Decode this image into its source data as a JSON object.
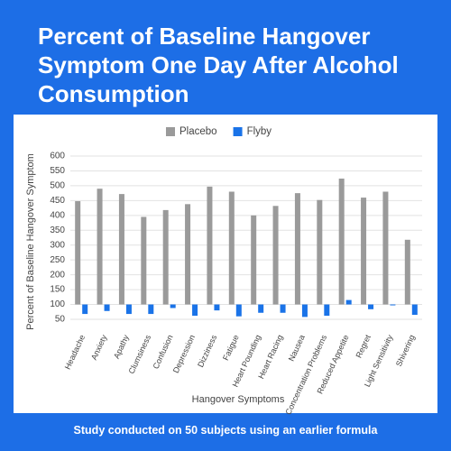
{
  "chart_data": {
    "type": "bar",
    "title": "Percent of Baseline Hangover Symptom One Day After Alcohol Consumption",
    "footnote": "Study conducted on 50 subjects using an earlier formula",
    "x_label": "Hangover Symptoms",
    "y_label": "Percent of Baseline Hangover Symptom",
    "categories": [
      "Headache",
      "Anxiety",
      "Apathy",
      "Clumsiness",
      "Confusion",
      "Depression",
      "Dizziness",
      "Fatigue",
      "Heart Pounding",
      "Heart Racing",
      "Nausea",
      "Concentration Problems",
      "Reduced Appetite",
      "Regret",
      "Light Sensitivity",
      "Shivering"
    ],
    "series": [
      {
        "name": "Placebo",
        "color": "#9a9a9a",
        "values": [
          448,
          490,
          472,
          395,
          418,
          438,
          497,
          480,
          400,
          432,
          475,
          452,
          524,
          460,
          480,
          318
        ]
      },
      {
        "name": "Flyby",
        "color": "#1a73e8",
        "values": [
          68,
          78,
          68,
          68,
          88,
          62,
          80,
          60,
          72,
          72,
          58,
          62,
          115,
          84,
          97,
          65
        ]
      }
    ],
    "baseline": 100,
    "ylim": [
      50,
      600
    ],
    "yticks": [
      50,
      100,
      150,
      200,
      250,
      300,
      350,
      400,
      450,
      500,
      550,
      600
    ],
    "grid": true,
    "legend": "top"
  }
}
